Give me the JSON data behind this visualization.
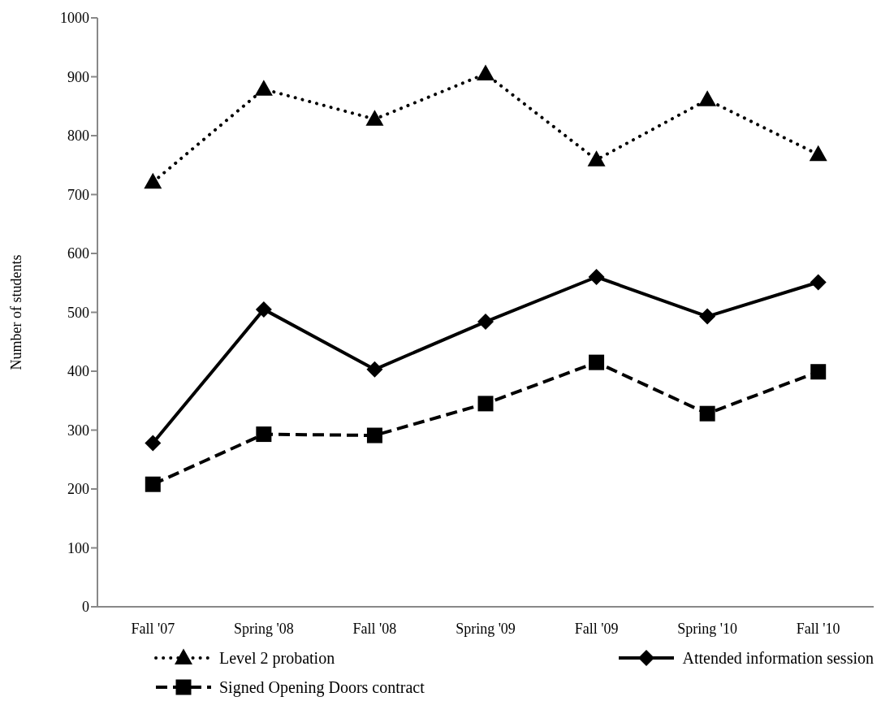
{
  "chart_data": {
    "type": "line",
    "ylabel": "Number of students",
    "categories": [
      "Fall '07",
      "Spring '08",
      "Fall '08",
      "Spring '09",
      "Fall '09",
      "Spring '10",
      "Fall '10"
    ],
    "series": [
      {
        "name": "Level 2 probation",
        "color": "#000000",
        "marker": "triangle",
        "line_style": "dotted",
        "values": [
          721,
          879,
          828,
          905,
          759,
          861,
          768
        ]
      },
      {
        "name": "Attended information session",
        "color": "#000000",
        "marker": "diamond",
        "line_style": "solid",
        "values": [
          278,
          505,
          403,
          484,
          560,
          493,
          551
        ]
      },
      {
        "name": "Signed Opening Doors contract",
        "color": "#000000",
        "marker": "square",
        "line_style": "dashed",
        "values": [
          208,
          293,
          291,
          345,
          415,
          328,
          399
        ]
      }
    ],
    "ylim": [
      0,
      1000
    ],
    "yticks": [
      0,
      100,
      200,
      300,
      400,
      500,
      600,
      700,
      800,
      900,
      1000
    ],
    "grid": false,
    "legend": "bottom"
  }
}
